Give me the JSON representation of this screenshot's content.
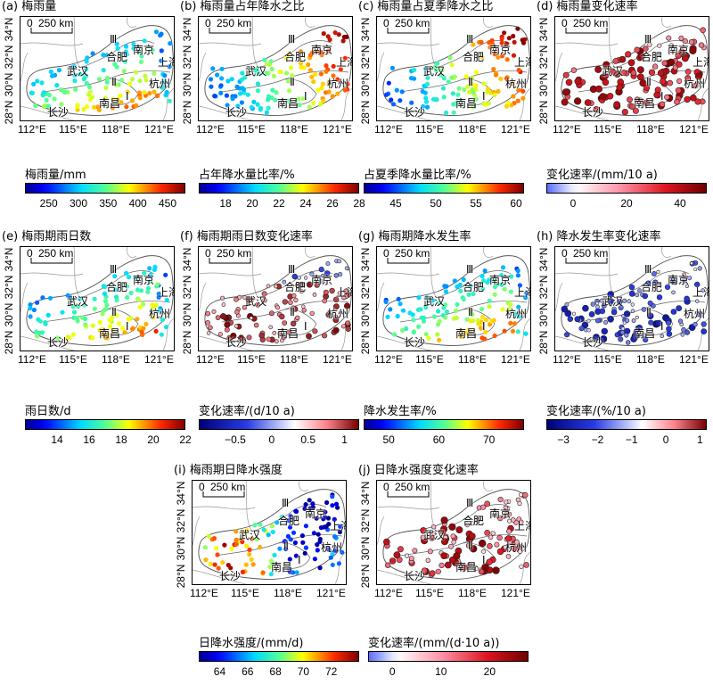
{
  "chart_data": [
    {
      "id": "a",
      "type": "map",
      "title": "(a) 梅雨量",
      "colorbar_label": "梅雨量/mm",
      "ticks": [
        "250",
        "300",
        "350",
        "400",
        "450"
      ],
      "range": [
        210,
        480
      ],
      "cmap": "jet",
      "dot_style": "filled"
    },
    {
      "id": "b",
      "type": "map",
      "title": "(b) 梅雨量占年降水之比",
      "colorbar_label": "占年降水量比率/%",
      "ticks": [
        "18",
        "20",
        "22",
        "24",
        "26",
        "28"
      ],
      "range": [
        16,
        28
      ],
      "cmap": "jet",
      "dot_style": "filled"
    },
    {
      "id": "c",
      "type": "map",
      "title": "(c) 梅雨量占夏季降水之比",
      "colorbar_label": "占夏季降水量比率/%",
      "ticks": [
        "45",
        "50",
        "55",
        "60"
      ],
      "range": [
        41,
        61
      ],
      "cmap": "jet",
      "dot_style": "filled"
    },
    {
      "id": "d",
      "type": "map",
      "title": "(d) 梅雨量变化速率",
      "colorbar_label": "变化速率/(mm/10 a)",
      "ticks": [
        "0",
        "20",
        "40"
      ],
      "range": [
        -10,
        50
      ],
      "cmap": "wr",
      "dot_style": "sized"
    },
    {
      "id": "e",
      "type": "map",
      "title": "(e) 梅雨期雨日数",
      "colorbar_label": "雨日数/d",
      "ticks": [
        "14",
        "16",
        "18",
        "20",
        "22"
      ],
      "range": [
        12,
        22
      ],
      "cmap": "jet",
      "dot_style": "filled"
    },
    {
      "id": "f",
      "type": "map",
      "title": "(f) 梅雨期雨日数变化速率",
      "colorbar_label": "变化速率/(d/10 a)",
      "ticks": [
        "−0.5",
        "0",
        "0.5",
        "1"
      ],
      "range": [
        -1,
        1.2
      ],
      "cmap": "bwr",
      "dot_style": "sized"
    },
    {
      "id": "g",
      "type": "map",
      "title": "(g) 梅雨期降水发生率",
      "colorbar_label": "降水发生率/%",
      "ticks": [
        "50",
        "60",
        "70"
      ],
      "range": [
        45,
        77
      ],
      "cmap": "jet",
      "dot_style": "filled"
    },
    {
      "id": "h",
      "type": "map",
      "title": "(h) 降水发生率变化速率",
      "colorbar_label": "变化速率/(%/10 a)",
      "ticks": [
        "−3",
        "−2",
        "−1",
        "0",
        "1"
      ],
      "range": [
        -3.5,
        1.2
      ],
      "cmap": "bwr",
      "dot_style": "sized"
    },
    {
      "id": "i",
      "type": "map",
      "title": "(i) 梅雨期日降水强度",
      "colorbar_label": "日降水强度/(mm/d)",
      "ticks": [
        "64",
        "66",
        "68",
        "70",
        "72"
      ],
      "range": [
        62.5,
        74
      ],
      "cmap": "jet",
      "dot_style": "filled"
    },
    {
      "id": "j",
      "type": "map",
      "title": "(j) 日降水强度变化速率",
      "colorbar_label": "变化速率/(mm/(d·10 a))",
      "ticks": [
        "0",
        "10",
        "20"
      ],
      "range": [
        -5,
        28
      ],
      "cmap": "wr",
      "dot_style": "sized"
    }
  ],
  "axes": {
    "lat_ticks": [
      "28°N",
      "30°N",
      "32°N",
      "34°N"
    ],
    "lon_ticks": [
      "112°E",
      "115°E",
      "118°E",
      "121°E"
    ]
  },
  "scale_label": "250 km",
  "map_labels": {
    "zone1": "Ⅰ",
    "zone2": "Ⅱ",
    "zone3": "Ⅲ",
    "nanjing": "南京",
    "hefei": "合肥",
    "shanghai": "上海",
    "wuhan": "武汉",
    "hangzhou": "杭州",
    "changsha": "长沙",
    "nanchang": "南昌"
  },
  "colors": {
    "jet_low": "#00008f",
    "jet_mid": "#4dff9a",
    "jet_high": "#800000",
    "white": "#ffffff",
    "dark_red": "#7a0000",
    "dark_blue": "#00007a"
  }
}
